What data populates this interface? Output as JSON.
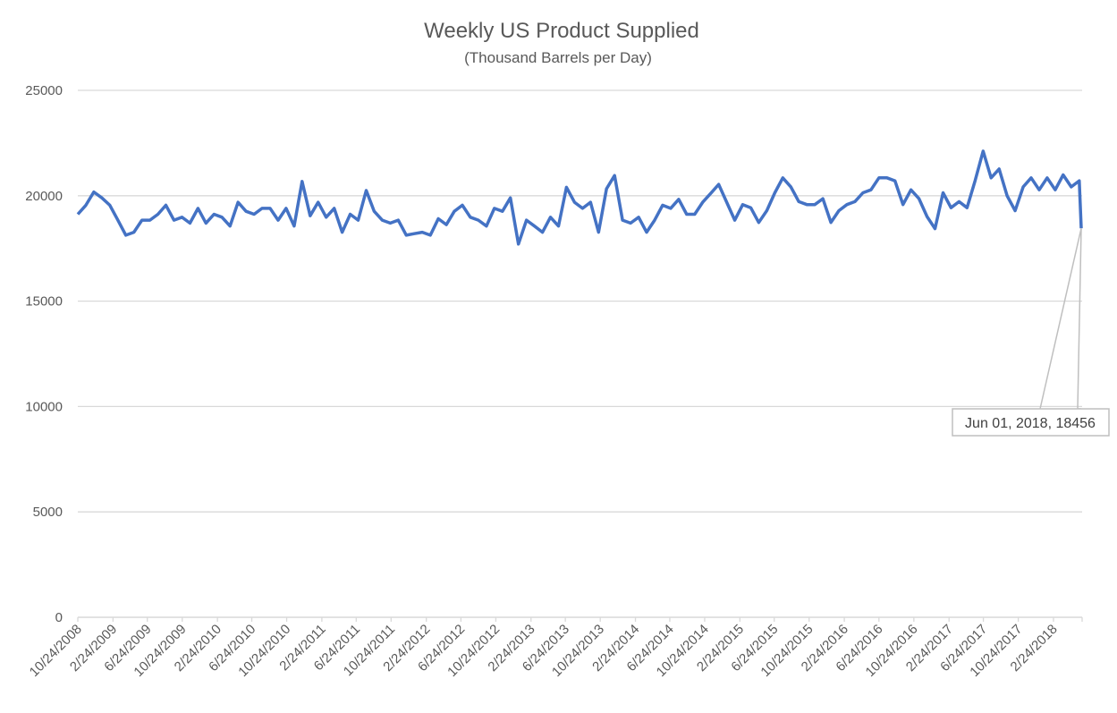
{
  "chart_data": {
    "type": "line",
    "title": "Weekly US Product Supplied",
    "subtitle": "(Thousand Barrels per Day)",
    "xlabel": "",
    "ylabel": "",
    "ylim": [
      0,
      25000
    ],
    "yticks": [
      "0",
      "5000",
      "10000",
      "15000",
      "20000",
      "25000"
    ],
    "xlim": [
      "2008-10-24",
      "2018-06-01"
    ],
    "xticks": [
      "10/24/2008",
      "2/24/2009",
      "6/24/2009",
      "10/24/2009",
      "2/24/2010",
      "6/24/2010",
      "10/24/2010",
      "2/24/2011",
      "6/24/2011",
      "10/24/2011",
      "2/24/2012",
      "6/24/2012",
      "10/24/2012",
      "2/24/2013",
      "6/24/2013",
      "10/24/2013",
      "2/24/2014",
      "6/24/2014",
      "10/24/2014",
      "2/24/2015",
      "6/24/2015",
      "10/24/2015",
      "2/24/2016",
      "6/24/2016",
      "10/24/2016",
      "2/24/2017",
      "6/24/2017",
      "10/24/2017",
      "2/24/2018"
    ],
    "grid": true,
    "legend": "none",
    "line_color": "#4472c4",
    "series": [
      {
        "x": [
          "2008-10-24",
          "2008-11-21",
          "2008-12-19",
          "2009-01-16",
          "2009-02-13",
          "2009-03-13",
          "2009-04-10",
          "2009-05-08",
          "2009-06-05",
          "2009-07-03",
          "2009-07-31",
          "2009-08-28",
          "2009-09-25",
          "2009-10-23",
          "2009-11-20",
          "2009-12-18",
          "2010-01-15",
          "2010-02-12",
          "2010-03-12",
          "2010-04-09",
          "2010-05-07",
          "2010-06-04",
          "2010-07-02",
          "2010-07-30",
          "2010-08-27",
          "2010-09-24",
          "2010-10-22",
          "2010-11-19",
          "2010-12-17",
          "2011-01-14",
          "2011-02-11",
          "2011-03-11",
          "2011-04-08",
          "2011-05-06",
          "2011-06-03",
          "2011-07-01",
          "2011-07-29",
          "2011-08-26",
          "2011-09-23",
          "2011-10-21",
          "2011-11-18",
          "2011-12-16",
          "2012-01-13",
          "2012-02-10",
          "2012-03-09",
          "2012-04-06",
          "2012-05-04",
          "2012-06-01",
          "2012-06-29",
          "2012-07-27",
          "2012-08-24",
          "2012-09-21",
          "2012-10-19",
          "2012-11-16",
          "2012-12-14",
          "2013-01-11",
          "2013-02-08",
          "2013-03-08",
          "2013-04-05",
          "2013-05-03",
          "2013-05-31",
          "2013-06-28",
          "2013-07-26",
          "2013-08-23",
          "2013-09-20",
          "2013-10-18",
          "2013-11-15",
          "2013-12-13",
          "2014-01-10",
          "2014-02-07",
          "2014-03-07",
          "2014-04-04",
          "2014-05-02",
          "2014-05-30",
          "2014-06-27",
          "2014-07-25",
          "2014-08-22",
          "2014-09-19",
          "2014-10-17",
          "2014-11-14",
          "2014-12-12",
          "2015-01-09",
          "2015-02-06",
          "2015-03-06",
          "2015-04-03",
          "2015-05-01",
          "2015-05-29",
          "2015-06-26",
          "2015-07-24",
          "2015-08-21",
          "2015-09-18",
          "2015-10-16",
          "2015-11-13",
          "2015-12-11",
          "2016-01-08",
          "2016-02-05",
          "2016-03-04",
          "2016-04-01",
          "2016-04-29",
          "2016-05-27",
          "2016-06-24",
          "2016-07-22",
          "2016-08-19",
          "2016-09-16",
          "2016-10-14",
          "2016-11-11",
          "2016-12-09",
          "2017-01-06",
          "2017-02-03",
          "2017-03-03",
          "2017-03-31",
          "2017-04-28",
          "2017-05-26",
          "2017-06-23",
          "2017-07-21",
          "2017-08-18",
          "2017-09-15",
          "2017-10-13",
          "2017-11-10",
          "2017-12-08",
          "2018-01-05",
          "2018-02-02",
          "2018-03-02",
          "2018-03-30",
          "2018-04-27",
          "2018-05-25",
          "2018-06-01"
        ],
        "y": [
          19120,
          19550,
          20180,
          19900,
          19550,
          18840,
          18130,
          18270,
          18840,
          18840,
          19120,
          19550,
          18840,
          18980,
          18700,
          19400,
          18700,
          19120,
          18980,
          18560,
          19690,
          19260,
          19120,
          19400,
          19400,
          18840,
          19400,
          18560,
          20680,
          19050,
          19690,
          18980,
          19400,
          18270,
          19120,
          18840,
          20250,
          19260,
          18840,
          18700,
          18840,
          18130,
          18200,
          18270,
          18130,
          18910,
          18630,
          19260,
          19550,
          18980,
          18840,
          18560,
          19400,
          19260,
          19900,
          17710,
          18840,
          18560,
          18270,
          18980,
          18560,
          20400,
          19690,
          19400,
          19690,
          18270,
          20330,
          20960,
          18840,
          18700,
          18980,
          18270,
          18840,
          19550,
          19400,
          19830,
          19120,
          19120,
          19690,
          20110,
          20540,
          19690,
          18840,
          19580,
          19430,
          18730,
          19290,
          20140,
          20850,
          20420,
          19720,
          19580,
          19580,
          19860,
          18730,
          19290,
          19580,
          19720,
          20140,
          20280,
          20850,
          20850,
          20710,
          19580,
          20280,
          19860,
          19010,
          18440,
          20140,
          19430,
          19720,
          19430,
          20710,
          22120,
          20850,
          21270,
          20000,
          19290,
          20420,
          20850,
          20280,
          20850,
          20280,
          20990,
          20420,
          20710,
          18456
        ]
      }
    ],
    "annotations": [
      {
        "text": "Jun 01, 2018, 18456",
        "x": "2018-06-01",
        "y": 18456
      }
    ]
  }
}
